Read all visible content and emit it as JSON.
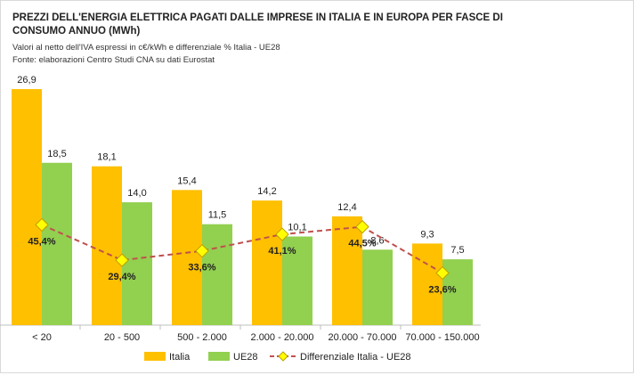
{
  "header": {
    "title": "PREZZI DELL'ENERGIA ELETTRICA PAGATI  DALLE IMPRESE IN ITALIA E IN EUROPA PER FASCE DI CONSUMO ANNUO (MWh)",
    "subtitle": "Valori al netto dell'IVA espressi in c€/kWh e differenziale % Italia - UE28",
    "source": "Fonte: elaborazioni Centro Studi CNA su dati Eurostat"
  },
  "chart_data": {
    "type": "bar",
    "categories": [
      "< 20",
      "20 - 500",
      "500 - 2.000",
      "2.000 - 20.000",
      "20.000 - 70.000",
      "70.000 - 150.000"
    ],
    "series": [
      {
        "name": "Italia",
        "values": [
          26.9,
          18.1,
          15.4,
          14.2,
          12.4,
          9.3
        ],
        "labels": [
          "26,9",
          "18,1",
          "15,4",
          "14,2",
          "12,4",
          "9,3"
        ],
        "color": "#FFC000"
      },
      {
        "name": "UE28",
        "values": [
          18.5,
          14.0,
          11.5,
          10.1,
          8.6,
          7.5
        ],
        "labels": [
          "18,5",
          "14,0",
          "11,5",
          "10,1",
          "8,6",
          "7,5"
        ],
        "color": "#92D050"
      }
    ],
    "line_series": {
      "name": "Differenziale Italia - UE28",
      "values": [
        45.4,
        29.4,
        33.6,
        41.1,
        44.5,
        23.6
      ],
      "labels": [
        "45,4%",
        "29,4%",
        "33,6%",
        "41,1%",
        "44,5%",
        "23,6%"
      ],
      "color": "#C0504D",
      "marker_color": "#FFFF00"
    },
    "ylim": [
      0,
      30
    ],
    "line_ylim": [
      0,
      120
    ],
    "grid": false,
    "legend": "bottom"
  }
}
